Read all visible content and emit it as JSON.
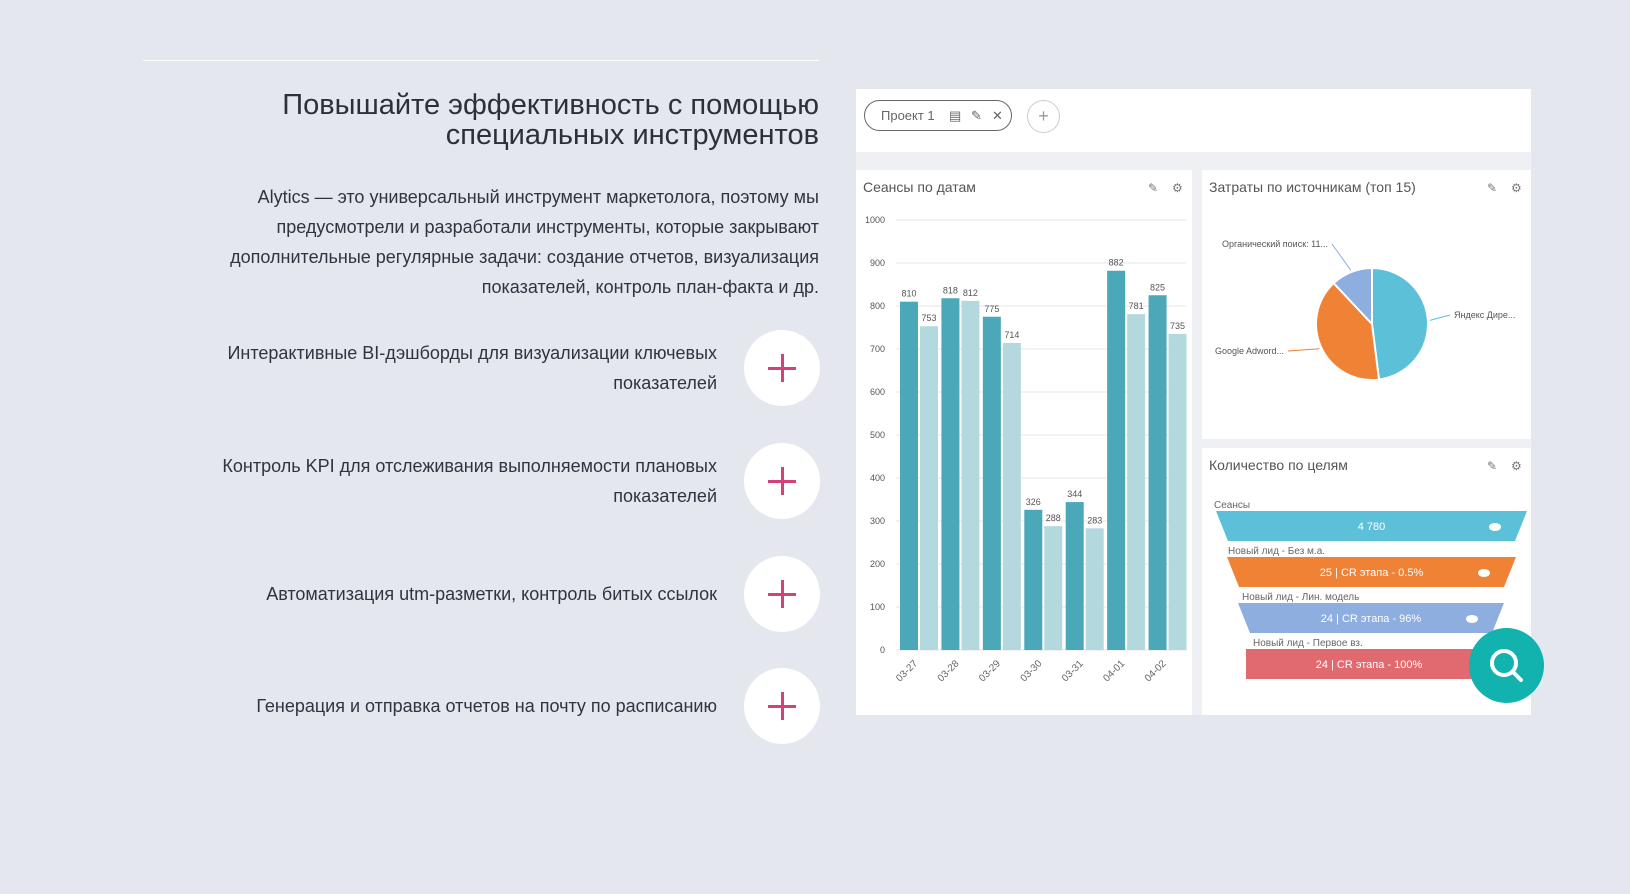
{
  "section": {
    "title_line1": "Повышайте эффективность с помощью",
    "title_line2": "специальных инструментов",
    "lead": "Alytics — это универсальный инструмент маркетолога, поэтому мы предусмотрели и разработали инструменты, которые закрывают дополнительные регулярные задачи: создание отчетов, визуализация показателей, контроль план-факта и др.",
    "features": [
      {
        "text": "Интерактивные BI-дэшборды для визуализации ключевых показателей"
      },
      {
        "text": "Контроль KPI для отслеживания выполняемости плановых показателей"
      },
      {
        "text": "Автоматизация utm-разметки, контроль битых ссылок"
      },
      {
        "text": "Генерация и отправка отчетов на почту по расписанию"
      }
    ],
    "accent": "#d2417a"
  },
  "dashboard": {
    "project_tab": "Проект 1",
    "add_tab": "+",
    "bar_panel": {
      "title": "Сеансы по датам"
    },
    "pie_panel": {
      "title": "Затраты по источникам (топ 15)"
    },
    "funnel_panel": {
      "title": "Количество по целям"
    }
  },
  "chart_data": [
    {
      "type": "bar",
      "title": "Сеансы по датам",
      "categories": [
        "03-27",
        "03-28",
        "03-29",
        "03-30",
        "03-31",
        "04-01",
        "04-02"
      ],
      "series": [
        {
          "values": [
            810,
            818,
            775,
            326,
            344,
            882,
            825
          ],
          "color": "#4aa8b8"
        },
        {
          "values": [
            753,
            812,
            714,
            288,
            283,
            781,
            735
          ],
          "color": "#b3d9df"
        }
      ],
      "yticks": [
        "0",
        "100",
        "200",
        "300",
        "400",
        "500",
        "600",
        "700",
        "800",
        "900",
        "1000"
      ],
      "ylim": [
        0,
        1000
      ],
      "grid": true
    },
    {
      "type": "pie",
      "title": "Затраты по источникам (топ 15)",
      "slices": [
        {
          "label": "Яндекс Дире...",
          "value": 48,
          "color": "#5bc0d8"
        },
        {
          "label": "Google Adword...",
          "value": 40,
          "color": "#f08236"
        },
        {
          "label": "Органический поиск: 11...",
          "value": 12,
          "color": "#8eaee0"
        }
      ]
    },
    {
      "type": "funnel",
      "title": "Количество по целям",
      "stages": [
        {
          "label": "Сеансы",
          "text": "4 780",
          "color": "#5bc0d8"
        },
        {
          "label": "Новый лид - Без м.а.",
          "text": "25 | CR этапа - 0.5%",
          "color": "#f08236"
        },
        {
          "label": "Новый лид - Лин. модель",
          "text": "24 | CR этапа - 96%",
          "color": "#8eaee0"
        },
        {
          "label": "Новый лид - Первое вз.",
          "text": "24 | CR этапа - 100%",
          "color": "#e06a6f"
        }
      ]
    }
  ]
}
